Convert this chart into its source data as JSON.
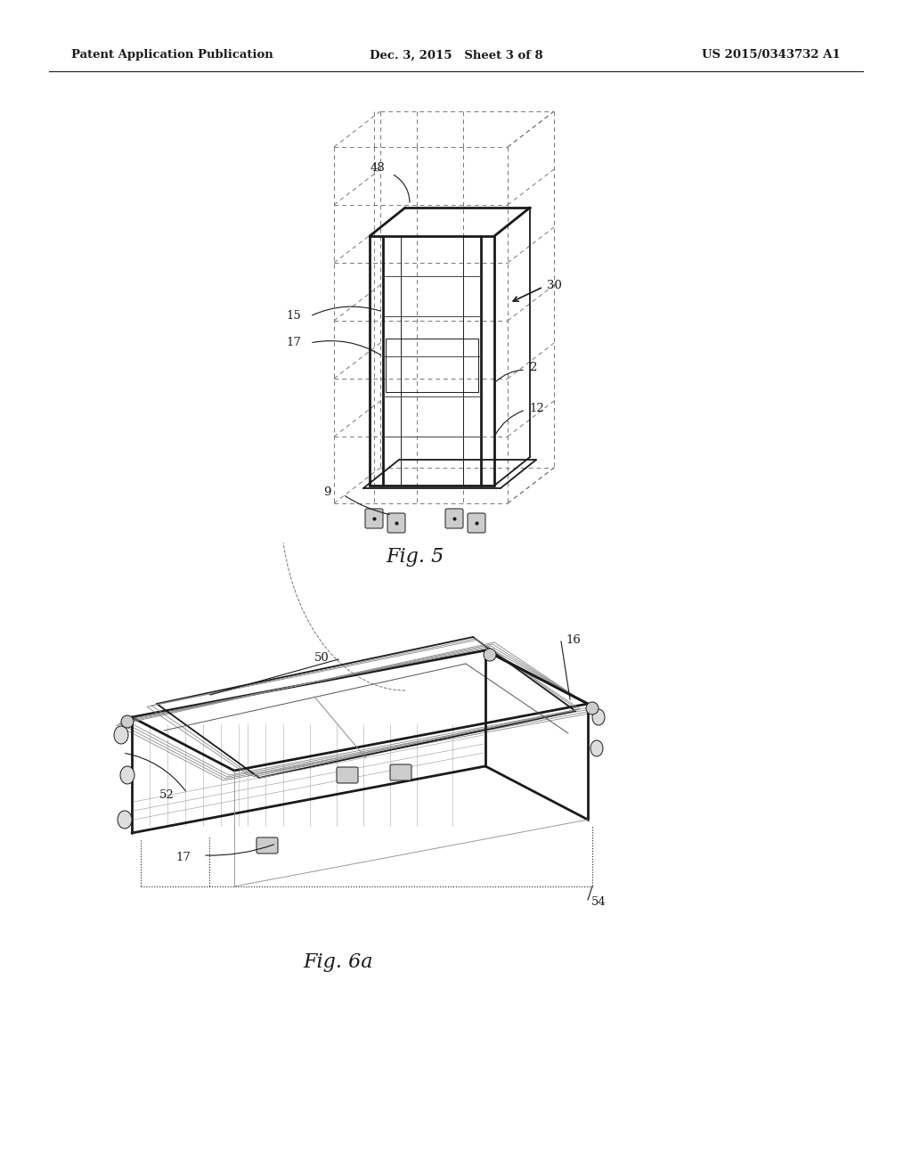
{
  "background_color": "#ffffff",
  "header_left": "Patent Application Publication",
  "header_mid": "Dec. 3, 2015   Sheet 3 of 8",
  "header_right": "US 2015/0343732 A1",
  "fig5_label": "Fig. 5",
  "fig6a_label": "Fig. 6a",
  "line_color": "#1a1a1a",
  "text_color": "#1a1a1a",
  "dashed_color": "#777777"
}
